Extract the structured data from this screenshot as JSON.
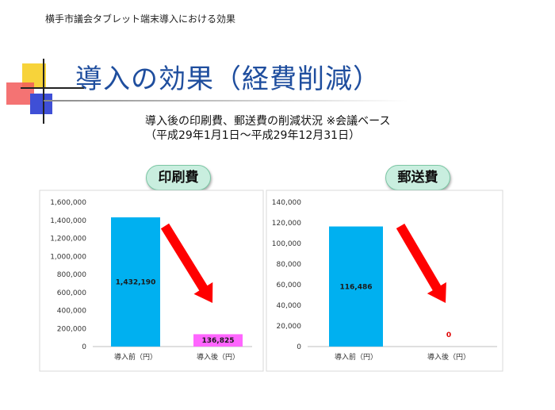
{
  "header": {
    "text": "横手市議会タブレット端末導入における効果"
  },
  "slide": {
    "title": "導入の効果（経費削減）",
    "subtitle_line1": "導入後の印刷費、郵送費の削減状況 ※会議ベース",
    "subtitle_line2": "（平成29年1月1日～平成29年12月31日）"
  },
  "colors": {
    "bar_before": "#00b0f0",
    "bar_after": "#ff66ff",
    "arrow": "#ff0000",
    "title": "#1f4e9e"
  },
  "chart_data": [
    {
      "type": "bar",
      "title": "印刷費",
      "categories": [
        "導入前（円）",
        "導入後（円）"
      ],
      "values": [
        1432190,
        136825
      ],
      "value_labels": [
        "1,432,190",
        "136,825"
      ],
      "ylim": [
        0,
        1600000
      ],
      "yticks": [
        0,
        200000,
        400000,
        600000,
        800000,
        1000000,
        1200000,
        1400000,
        1600000
      ],
      "ytick_labels": [
        "0",
        "200,000",
        "400,000",
        "600,000",
        "800,000",
        "1,000,000",
        "1,200,000",
        "1,400,000",
        "1,600,000"
      ],
      "grid": false
    },
    {
      "type": "bar",
      "title": "郵送費",
      "categories": [
        "導入前（円）",
        "導入後（円）"
      ],
      "values": [
        116486,
        0
      ],
      "value_labels": [
        "116,486",
        "0"
      ],
      "ylim": [
        0,
        140000
      ],
      "yticks": [
        0,
        20000,
        40000,
        60000,
        80000,
        100000,
        120000,
        140000
      ],
      "ytick_labels": [
        "0",
        "20,000",
        "40,000",
        "60,000",
        "80,000",
        "100,000",
        "120,000",
        "140,000"
      ],
      "grid": false
    }
  ]
}
